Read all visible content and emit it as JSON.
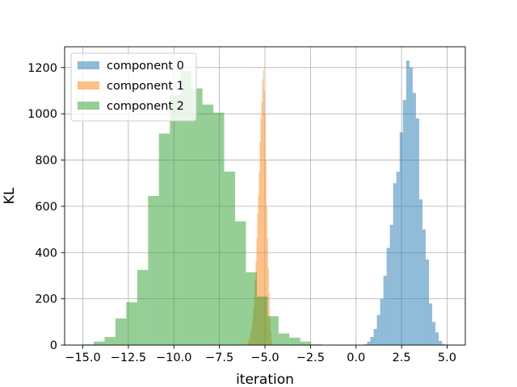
{
  "chart_data": {
    "type": "bar",
    "subtype": "histogram",
    "title": "",
    "xlabel": "iteration",
    "ylabel": "KL",
    "xlim": [
      -16.0,
      6.0
    ],
    "ylim": [
      0,
      1290
    ],
    "xticks": [
      -15.0,
      -12.5,
      -10.0,
      -7.5,
      -5.0,
      -2.5,
      0.0,
      2.5,
      5.0
    ],
    "xtick_labels": [
      "−15.0",
      "−12.5",
      "−10.0",
      "−7.5",
      "−5.0",
      "−2.5",
      "0.0",
      "2.5",
      "5.0"
    ],
    "yticks": [
      0,
      200,
      400,
      600,
      800,
      1000,
      1200
    ],
    "ytick_labels": [
      "0",
      "200",
      "400",
      "600",
      "800",
      "1000",
      "1200"
    ],
    "grid": true,
    "legend_position": "top-left",
    "bar_opacity": 0.5,
    "series": [
      {
        "name": "component 0",
        "color": "#1f77b4",
        "bin_start": 0.43,
        "bin_width": 0.1787,
        "values": [
          3,
          15,
          35,
          70,
          130,
          200,
          300,
          420,
          520,
          700,
          750,
          920,
          1060,
          1230,
          1200,
          1090,
          980,
          630,
          500,
          370,
          180,
          100,
          55,
          18,
          5
        ]
      },
      {
        "name": "component 1",
        "color": "#ff7f0e",
        "bin_start": -6.05,
        "bin_width": 0.045,
        "values": [
          3,
          5,
          10,
          18,
          30,
          48,
          60,
          80,
          115,
          160,
          210,
          280,
          360,
          460,
          570,
          650,
          750,
          880,
          980,
          1050,
          1150,
          1190,
          1100,
          1000,
          800,
          600,
          460,
          330,
          220,
          120,
          60,
          15
        ]
      },
      {
        "name": "component 2",
        "color": "#2ca02c",
        "bin_start": -15.0,
        "bin_width": 0.597,
        "values": [
          3,
          15,
          35,
          115,
          185,
          325,
          645,
          915,
          1080,
          1185,
          1110,
          1040,
          1005,
          750,
          535,
          315,
          210,
          125,
          50,
          32,
          15,
          3
        ]
      }
    ]
  }
}
